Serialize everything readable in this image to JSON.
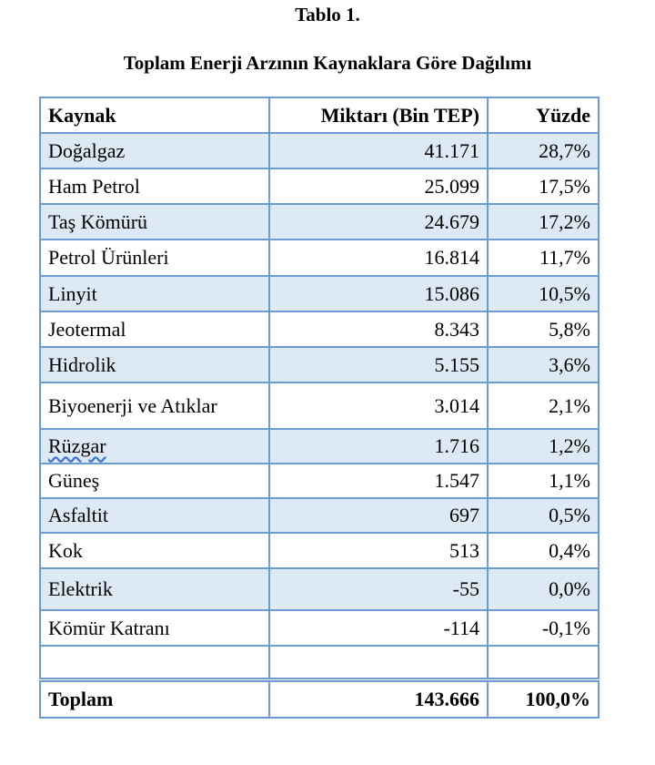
{
  "caption": "Tablo 1.",
  "title": "Toplam Enerji Arzının Kaynaklara Göre Dağılımı",
  "headers": [
    "Kaynak",
    "Miktarı (Bin TEP)",
    "Yüzde"
  ],
  "rows": [
    [
      "Doğalgaz",
      "41.171",
      "28,7%"
    ],
    [
      "Ham Petrol",
      "25.099",
      "17,5%"
    ],
    [
      "Taş Kömürü",
      "24.679",
      "17,2%"
    ],
    [
      "Petrol Ürünleri",
      "16.814",
      "11,7%"
    ],
    [
      "Linyit",
      "15.086",
      "10,5%"
    ],
    [
      "Jeotermal",
      "8.343",
      "5,8%"
    ],
    [
      "Hidrolik",
      "5.155",
      "3,6%"
    ],
    [
      "Biyoenerji ve Atıklar",
      "3.014",
      "2,1%"
    ],
    [
      "Rüzgar",
      "1.716",
      "1,2%"
    ],
    [
      "Güneş",
      "1.547",
      "1,1%"
    ],
    [
      "Asfaltit",
      "697",
      "0,5%"
    ],
    [
      "Kok",
      "513",
      "0,4%"
    ],
    [
      "Elektrik",
      "-55",
      "0,0%"
    ],
    [
      "Kömür Katranı",
      "-114",
      "-0,1%"
    ]
  ],
  "total": [
    "Toplam",
    "143.666",
    "100,0%"
  ],
  "colors": {
    "border": "#6c9bcf",
    "shade": "#dde9f5"
  }
}
